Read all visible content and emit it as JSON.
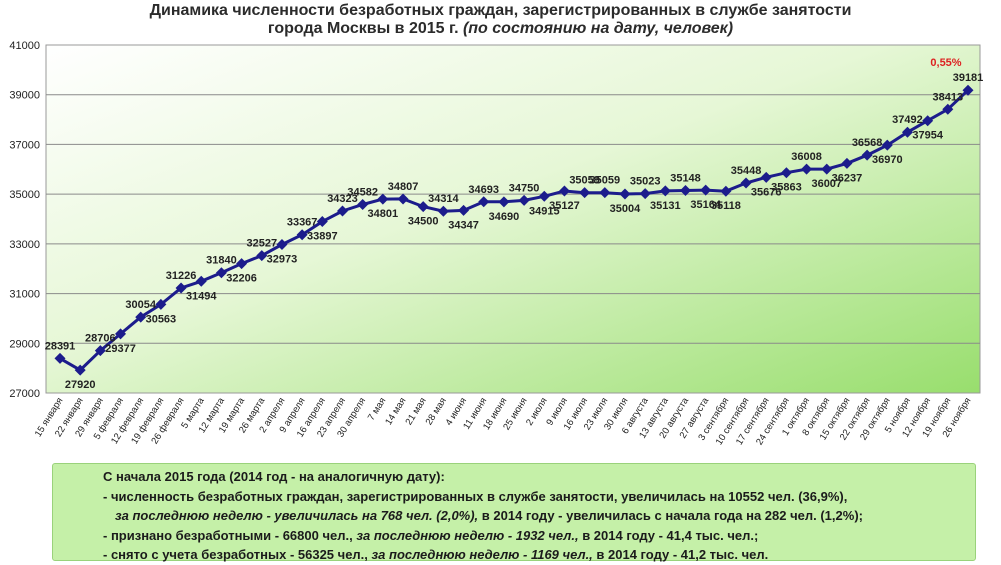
{
  "title": {
    "line1": "Динамика численности безработных граждан, зарегистрированных в службе занятости",
    "line2_main": "города Москвы в 2015 г. ",
    "line2_italic": "(по состоянию на дату, человек)"
  },
  "chart_data": {
    "type": "line",
    "title": "Динамика численности безработных граждан, зарегистрированных в службе занятости города Москвы в 2015 г. (по состоянию на дату, человек)",
    "ylim": [
      27000,
      41000
    ],
    "yticks": [
      27000,
      29000,
      31000,
      33000,
      35000,
      37000,
      39000,
      41000
    ],
    "grid": true,
    "marker_color": "#1c1c8c",
    "background_gradient": [
      "#ffffff",
      "#98de6d"
    ],
    "categories": [
      "15 января",
      "22 января",
      "29 января",
      "5 февраля",
      "12 февраля",
      "19 февраля",
      "26 февраля",
      "5 марта",
      "12 марта",
      "19 марта",
      "26 марта",
      "2 апреля",
      "9 апреля",
      "16 апреля",
      "23 апреля",
      "30 апреля",
      "7 мая",
      "14 мая",
      "21 мая",
      "28 мая",
      "4 июня",
      "11 июня",
      "18 июня",
      "25 июня",
      "2 июля",
      "9 июля",
      "16 июля",
      "23 июля",
      "30 июля",
      "6 августа",
      "13 августа",
      "20 августа",
      "27 августа",
      "3 сентября",
      "10 сентября",
      "17 сентября",
      "24 сентября",
      "1 октября",
      "8 октября",
      "15 октября",
      "22 октября",
      "29 октября",
      "5 ноября",
      "12 ноября",
      "19 ноября",
      "26 ноября"
    ],
    "values": [
      28391,
      27920,
      28706,
      29377,
      30054,
      30563,
      31226,
      31494,
      31840,
      32206,
      32527,
      32973,
      33367,
      33897,
      34323,
      34582,
      34801,
      34807,
      34500,
      34314,
      34347,
      34693,
      34690,
      34750,
      34915,
      35127,
      35059,
      35059,
      35004,
      35023,
      35131,
      35148,
      35164,
      35118,
      35448,
      35676,
      35863,
      36008,
      36007,
      36237,
      36568,
      36970,
      37492,
      37954,
      38413,
      39181
    ],
    "label_position": [
      "above",
      "below",
      "above",
      "below",
      "above",
      "below",
      "above",
      "below",
      "above",
      "below",
      "above",
      "below",
      "above",
      "below",
      "above",
      "above",
      "below",
      "above",
      "below",
      "above",
      "below",
      "above",
      "below",
      "above",
      "below",
      "below",
      "above",
      "above",
      "below",
      "above",
      "below",
      "above",
      "below",
      "below",
      "above",
      "below",
      "below",
      "above",
      "below",
      "below",
      "above",
      "below",
      "above",
      "below",
      "above",
      "above"
    ],
    "annotation": "0,55%",
    "annotation_color": "#dd2222"
  },
  "notes": {
    "header": "С начала 2015 года (2014 год - на аналогичную дату):",
    "l1": "- численность безработных граждан, зарегистрированных в службе занятости, увеличилась на 10552 чел. (36,9%),",
    "l2_italic": "за последнюю неделю - увеличилась на 768 чел. (2,0%),",
    "l2_rest": " в 2014 году - увеличилась с начала года на 282 чел. (1,2%);",
    "l3_a": "- признано безработными - 66800 чел., ",
    "l3_italic": "за последнюю неделю - 1932 чел.,",
    "l3_b": " в 2014 году - 41,4 тыс. чел.;",
    "l4_a": "- снято с учета безработных - 56325 чел., ",
    "l4_italic": "за последнюю неделю - 1169 чел.,",
    "l4_b": " в 2014 году - 41,2 тыс. чел."
  }
}
